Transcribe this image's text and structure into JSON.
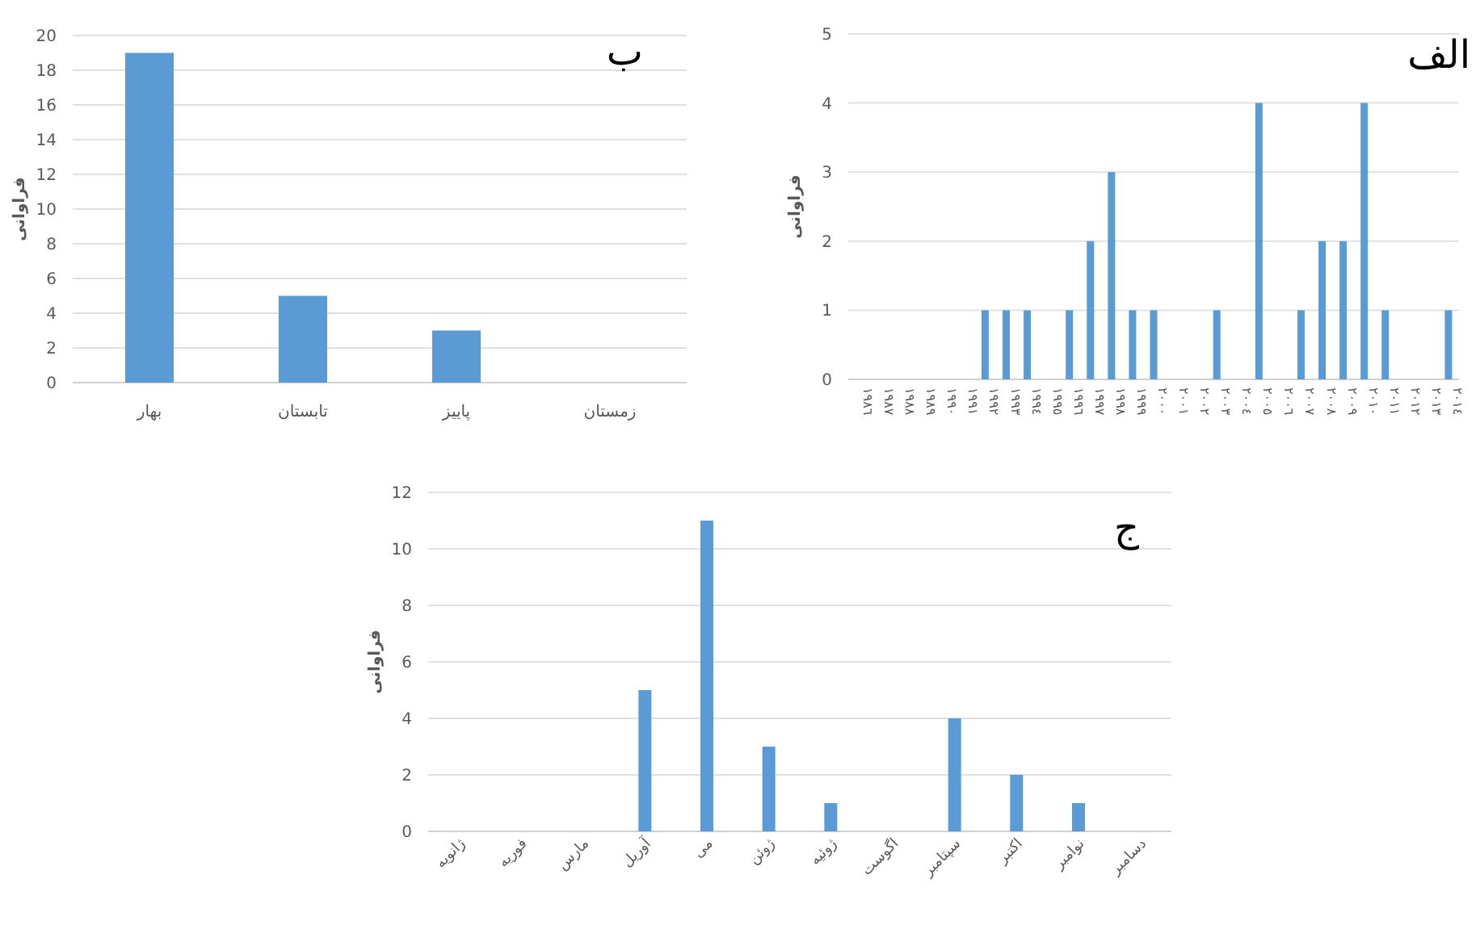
{
  "chart_data": [
    {
      "type": "bar",
      "title": "ب",
      "ylabel": "فراوانی",
      "categories": [
        "بهار",
        "تابستان",
        "پاییز",
        "زمستان"
      ],
      "values": [
        19,
        5,
        3,
        0
      ],
      "color": "#5b9bd5",
      "ylim": [
        0,
        20
      ],
      "yticks": [
        0,
        2,
        4,
        6,
        8,
        10,
        12,
        14,
        16,
        18,
        20
      ],
      "grid": "y"
    },
    {
      "type": "bar",
      "title": "الف",
      "ylabel": "فراوانی",
      "categories": [
        "١٩٨٦",
        "١٩٨٧",
        "١٩٨٨",
        "١٩٨٩",
        "١٩٩٠",
        "١٩٩١",
        "١٩٩٢",
        "١٩٩٣",
        "١٩٩٤",
        "١٩٩٥",
        "١٩٩٦",
        "١٩٩٧",
        "١٩٩٨",
        "١٩٩٩",
        "٢٠٠٠",
        "٢٠٠١",
        "٢٠٠٢",
        "٢٠٠٣",
        "٢٠٠٤",
        "٢٠٠٥",
        "٢٠٠٦",
        "٢٠٠٧",
        "٢٠٠٨",
        "٢٠٠٩",
        "٢٠١٠",
        "٢٠١١",
        "٢٠١٢",
        "٢٠١٣",
        "٢٠١٤"
      ],
      "values": [
        0,
        0,
        0,
        0,
        0,
        0,
        1,
        1,
        1,
        0,
        1,
        2,
        3,
        1,
        1,
        0,
        0,
        1,
        0,
        4,
        0,
        1,
        2,
        2,
        4,
        1,
        0,
        0,
        1
      ],
      "color": "#5b9bd5",
      "ylim": [
        0,
        5
      ],
      "yticks": [
        0,
        1,
        2,
        3,
        4,
        5
      ],
      "grid": "y"
    },
    {
      "type": "bar",
      "title": "ج",
      "ylabel": "فراوانی",
      "categories": [
        "ژانویه",
        "فوریه",
        "مارس",
        "آوریل",
        "می",
        "ژوئن",
        "ژوئیه",
        "اگوست",
        "سپتامبر",
        "اکتبر",
        "نوامبر",
        "دسامبر"
      ],
      "values": [
        0,
        0,
        0,
        5,
        11,
        3,
        1,
        0,
        4,
        2,
        1,
        0
      ],
      "color": "#5b9bd5",
      "ylim": [
        0,
        12
      ],
      "yticks": [
        0,
        2,
        4,
        6,
        8,
        10,
        12
      ],
      "grid": "y"
    }
  ]
}
